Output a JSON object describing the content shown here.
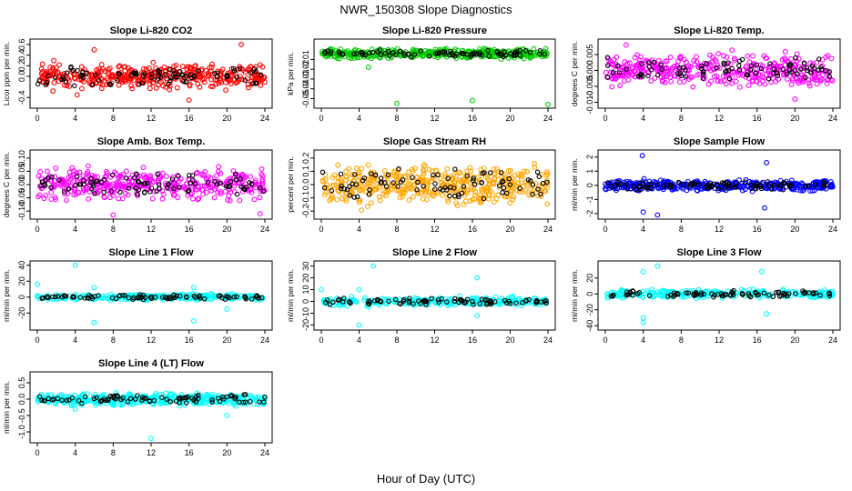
{
  "figure": {
    "title": "NWR_150308  Slope Diagnostics",
    "xlabel": "Hour of Day (UTC)"
  },
  "chart_data": [
    {
      "type": "scatter",
      "title": "Slope Li-820 CO2",
      "ylabel": "Licor ppm per min.",
      "xlim": [
        0,
        24
      ],
      "ylim": [
        -0.55,
        0.65
      ],
      "xticks": [
        0,
        4,
        8,
        12,
        16,
        20,
        24
      ],
      "yticks": [
        -0.4,
        0,
        0.2,
        0.4,
        0.6
      ],
      "ytick_labels": [
        "-0.4",
        "0.0",
        "0.2",
        "0.4",
        "0.6"
      ],
      "series_color": "#ff0000",
      "spread": 0.18,
      "n": 380,
      "seed": 11,
      "outliers": [
        [
          16,
          -0.45
        ],
        [
          4.2,
          -0.35
        ],
        [
          6,
          0.5
        ],
        [
          21.5,
          0.6
        ]
      ]
    },
    {
      "type": "scatter",
      "title": "Slope Li-820 Pressure",
      "ylabel": "kPa per min.",
      "xlim": [
        0,
        24
      ],
      "ylim": [
        -0.057,
        0.008
      ],
      "xticks": [
        0,
        4,
        8,
        12,
        16,
        20,
        24
      ],
      "yticks": [
        -0.05,
        -0.04,
        -0.03,
        -0.02,
        -0.01
      ],
      "ytick_labels": [
        "-0.05",
        "-0.04",
        "-0.03",
        "-0.02",
        "-0.01"
      ],
      "series_color": "#00cc00",
      "spread": 0.004,
      "center": -0.004,
      "n": 380,
      "seed": 23,
      "outliers": [
        [
          8,
          -0.055
        ],
        [
          16,
          -0.052
        ],
        [
          24,
          -0.056
        ],
        [
          5,
          -0.018
        ]
      ]
    },
    {
      "type": "scatter",
      "title": "Slope Li-820 Temp.",
      "ylabel": "degrees C per min.",
      "xlim": [
        0,
        24
      ],
      "ylim": [
        -0.011,
        0.009
      ],
      "xticks": [
        0,
        4,
        8,
        12,
        16,
        20,
        24
      ],
      "yticks": [
        -0.01,
        -0.005,
        0,
        0.005
      ],
      "ytick_labels": [
        "-0.010",
        "-0.005",
        "0.000",
        "0.005"
      ],
      "series_color": "#ff00ff",
      "spread": 0.004,
      "n": 380,
      "seed": 37,
      "outliers": [
        [
          2.2,
          0.008
        ],
        [
          20,
          -0.009
        ]
      ]
    },
    {
      "type": "scatter",
      "title": "Slope Amb. Box Temp.",
      "ylabel": "degrees C per min.",
      "xlim": [
        0,
        24
      ],
      "ylim": [
        -0.12,
        0.12
      ],
      "xticks": [
        0,
        4,
        8,
        12,
        16,
        20,
        24
      ],
      "yticks": [
        -0.1,
        -0.05,
        0,
        0.05,
        0.1
      ],
      "ytick_labels": [
        "-0.10",
        "-0.05",
        "0.00",
        "0.05",
        "0.10"
      ],
      "series_color": "#ff00ff",
      "spread": 0.045,
      "n": 380,
      "seed": 41,
      "outliers": [
        [
          8,
          -0.115
        ],
        [
          23.5,
          -0.11
        ]
      ]
    },
    {
      "type": "scatter",
      "title": "Slope Gas Stream RH",
      "ylabel": "percent per min.",
      "xlim": [
        0,
        24
      ],
      "ylim": [
        -0.24,
        0.24
      ],
      "xticks": [
        0,
        4,
        8,
        12,
        16,
        20,
        24
      ],
      "yticks": [
        -0.2,
        -0.1,
        0,
        0.1,
        0.2
      ],
      "ytick_labels": [
        "-0.2",
        "-0.1",
        "0.0",
        "0.1",
        "0.2"
      ],
      "series_color": "#ffa500",
      "spread": 0.12,
      "n": 420,
      "seed": 53,
      "outliers": []
    },
    {
      "type": "scatter",
      "title": "Slope Sample Flow",
      "ylabel": "ml/min per min.",
      "xlim": [
        0,
        24
      ],
      "ylim": [
        -2.2,
        2.3
      ],
      "xticks": [
        0,
        4,
        8,
        12,
        16,
        20,
        24
      ],
      "yticks": [
        -2,
        -1,
        0,
        1,
        2
      ],
      "ytick_labels": [
        "-2",
        "-1",
        "0",
        "1",
        "2"
      ],
      "series_color": "#0000ff",
      "spread": 0.3,
      "n": 380,
      "seed": 67,
      "outliers": [
        [
          3.9,
          2.1
        ],
        [
          4,
          -1.9
        ],
        [
          5.5,
          -2.1
        ],
        [
          17,
          1.6
        ],
        [
          16.8,
          -1.6
        ]
      ]
    },
    {
      "type": "scatter",
      "title": "Slope Line 1 Flow",
      "ylabel": "ml/min per min.",
      "xlim": [
        0,
        24
      ],
      "ylim": [
        -38,
        42
      ],
      "xticks": [
        0,
        4,
        8,
        12,
        16,
        20,
        24
      ],
      "yticks": [
        -20,
        0,
        20,
        40
      ],
      "ytick_labels": [
        "-20",
        "0",
        "20",
        "40"
      ],
      "series_color": "#00ffff",
      "spread": 3,
      "n": 260,
      "seed": 71,
      "outliers": [
        [
          4,
          40
        ],
        [
          6,
          -32
        ],
        [
          16.5,
          -30
        ],
        [
          20,
          -15
        ],
        [
          0,
          16
        ],
        [
          6,
          12
        ],
        [
          16.5,
          12
        ]
      ]
    },
    {
      "type": "scatter",
      "title": "Slope Line 2 Flow",
      "ylabel": "ml/min per min.",
      "xlim": [
        0,
        24
      ],
      "ylim": [
        -22,
        32
      ],
      "xticks": [
        0,
        4,
        8,
        12,
        16,
        20,
        24
      ],
      "yticks": [
        -20,
        -10,
        0,
        10,
        20,
        30
      ],
      "ytick_labels": [
        "-20",
        "-10",
        "0",
        "10",
        "20",
        "30"
      ],
      "series_color": "#00ffff",
      "spread": 3,
      "n": 260,
      "seed": 83,
      "outliers": [
        [
          5.5,
          30
        ],
        [
          4,
          -20
        ],
        [
          16.5,
          20
        ],
        [
          16.5,
          -12
        ],
        [
          4,
          10
        ],
        [
          0,
          10
        ]
      ]
    },
    {
      "type": "scatter",
      "title": "Slope Line 3 Flow",
      "ylabel": "ml/min per min.",
      "xlim": [
        0,
        24
      ],
      "ylim": [
        -42,
        38
      ],
      "xticks": [
        0,
        4,
        8,
        12,
        16,
        20,
        24
      ],
      "yticks": [
        -40,
        -20,
        0,
        20
      ],
      "ytick_labels": [
        "-40",
        "-20",
        "0",
        "20"
      ],
      "series_color": "#00ffff",
      "spread": 4,
      "n": 260,
      "seed": 97,
      "outliers": [
        [
          5.5,
          35
        ],
        [
          4,
          28
        ],
        [
          4,
          -30
        ],
        [
          4,
          -36
        ],
        [
          16.5,
          28
        ],
        [
          17,
          -25
        ]
      ]
    },
    {
      "type": "scatter",
      "title": "Slope Line 4 (LT) Flow",
      "ylabel": "ml/min per min.",
      "xlim": [
        0,
        24
      ],
      "ylim": [
        -1.25,
        0.75
      ],
      "xticks": [
        0,
        4,
        8,
        12,
        16,
        20,
        24
      ],
      "yticks": [
        -1,
        -0.5,
        0,
        0.5
      ],
      "ytick_labels": [
        "-1.0",
        "-0.5",
        "0.0",
        "0.5"
      ],
      "series_color": "#00ffff",
      "spread": 0.14,
      "n": 420,
      "seed": 101,
      "outliers": [
        [
          12,
          -1.2
        ],
        [
          20,
          -0.5
        ],
        [
          4,
          -0.3
        ]
      ]
    }
  ]
}
